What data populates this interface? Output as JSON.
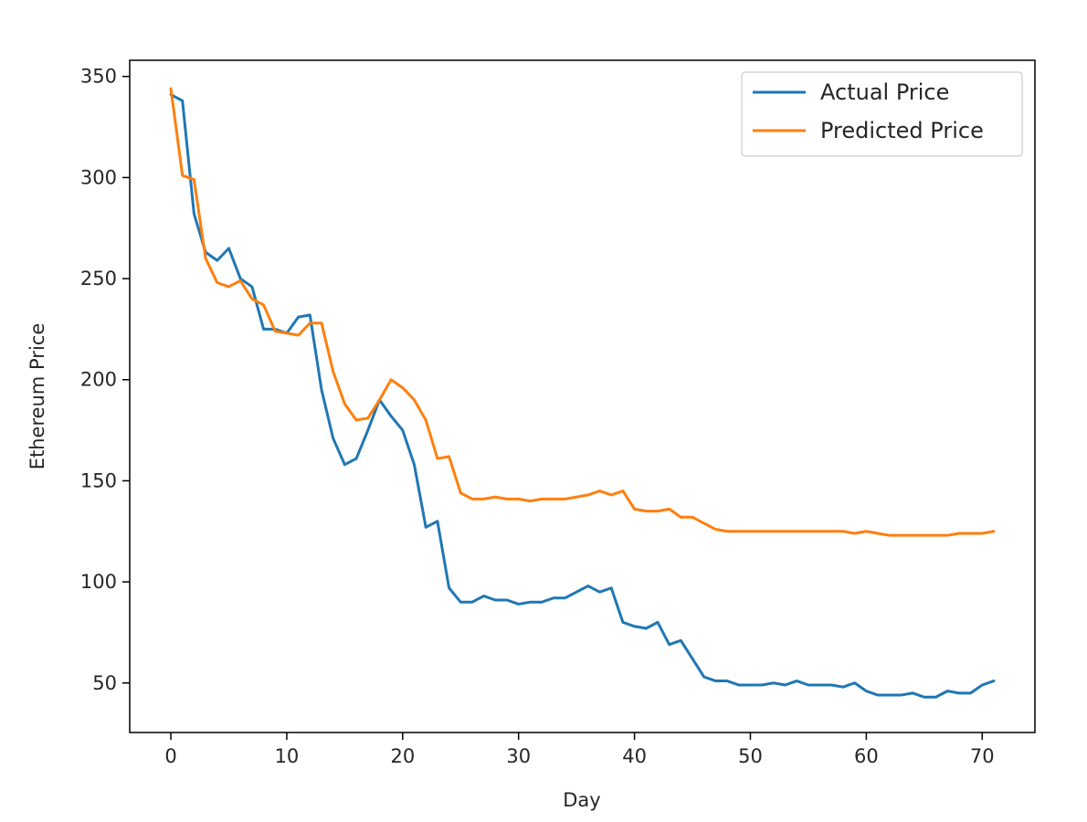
{
  "chart_data": {
    "type": "line",
    "title": "",
    "xlabel": "Day",
    "ylabel": "Ethereum Price",
    "xlim": [
      -3.55,
      74.55
    ],
    "ylim": [
      25.5,
      358
    ],
    "x_ticks": [
      0,
      10,
      20,
      30,
      40,
      50,
      60,
      70
    ],
    "y_ticks": [
      50,
      100,
      150,
      200,
      250,
      300,
      350
    ],
    "grid": false,
    "legend_position": "top-right",
    "x": [
      0,
      1,
      2,
      3,
      4,
      5,
      6,
      7,
      8,
      9,
      10,
      11,
      12,
      13,
      14,
      15,
      16,
      17,
      18,
      19,
      20,
      21,
      22,
      23,
      24,
      25,
      26,
      27,
      28,
      29,
      30,
      31,
      32,
      33,
      34,
      35,
      36,
      37,
      38,
      39,
      40,
      41,
      42,
      43,
      44,
      45,
      46,
      47,
      48,
      49,
      50,
      51,
      52,
      53,
      54,
      55,
      56,
      57,
      58,
      59,
      60,
      61,
      62,
      63,
      64,
      65,
      66,
      67,
      68,
      69,
      70,
      71
    ],
    "series": [
      {
        "name": "Actual Price",
        "color": "#1f77b4",
        "values": [
          341,
          338,
          282,
          263,
          259,
          265,
          250,
          246,
          225,
          225,
          223,
          231,
          232,
          195,
          171,
          158,
          161,
          175,
          190,
          182,
          175,
          158,
          127,
          130,
          97,
          90,
          90,
          93,
          91,
          91,
          89,
          90,
          90,
          92,
          92,
          95,
          98,
          95,
          97,
          80,
          78,
          77,
          80,
          69,
          71,
          62,
          53,
          51,
          51,
          49,
          49,
          49,
          50,
          49,
          51,
          49,
          49,
          49,
          48,
          50,
          46,
          44,
          44,
          44,
          45,
          43,
          43,
          46,
          45,
          45,
          49,
          51
        ]
      },
      {
        "name": "Predicted Price",
        "color": "#ff7f0e",
        "values": [
          344,
          301,
          299,
          260,
          248,
          246,
          249,
          240,
          237,
          224,
          223,
          222,
          228,
          228,
          204,
          188,
          180,
          181,
          190,
          200,
          196,
          190,
          180,
          161,
          162,
          144,
          141,
          141,
          142,
          141,
          141,
          140,
          141,
          141,
          141,
          142,
          143,
          145,
          143,
          145,
          136,
          135,
          135,
          136,
          132,
          132,
          129,
          126,
          125,
          125,
          125,
          125,
          125,
          125,
          125,
          125,
          125,
          125,
          125,
          124,
          125,
          124,
          123,
          123,
          123,
          123,
          123,
          123,
          124,
          124,
          124,
          125
        ]
      }
    ]
  }
}
